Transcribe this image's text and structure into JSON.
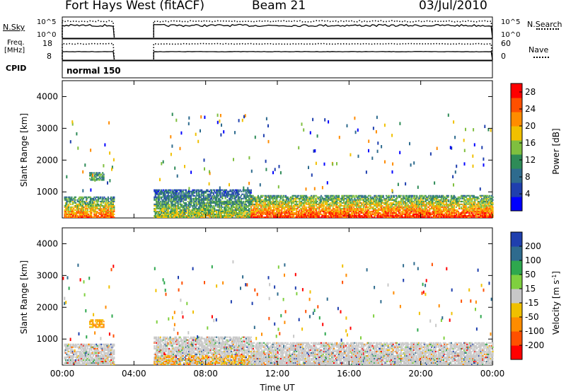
{
  "header": {
    "station": "Fort Hays West (fitACF)",
    "beam": "Beam 21",
    "date": "03/Jul/2010"
  },
  "panels": {
    "nsky_label": "N.Sky",
    "nsearch_label": "N.Search",
    "nsky_ticks": [
      "10^5",
      "10^0"
    ],
    "nsearch_ticks": [
      "10^5",
      "10^0"
    ],
    "freq_label_1": "Freq.",
    "freq_label_2": "[MHz]",
    "freq_ticks": [
      "18",
      "8"
    ],
    "nave_label": "Nave",
    "nave_ticks": [
      "60",
      "0"
    ],
    "cpid_label": "CPID",
    "cpid_value": "normal 150"
  },
  "chart_data": [
    {
      "type": "heatmap",
      "name_key": "power",
      "xlabel": "Time UT",
      "ylabel": "Slant Range [km]",
      "xlim_hours": [
        0,
        24
      ],
      "x_ticks": [
        "00:00",
        "04:00",
        "08:00",
        "12:00",
        "16:00",
        "20:00",
        "00:00"
      ],
      "ylim": [
        180,
        4500
      ],
      "y_ticks": [
        1000,
        2000,
        3000,
        4000
      ],
      "data_gap_hours": [
        2.9,
        5.1
      ],
      "colorbar": {
        "label": "Power [dB]",
        "ticks": [
          4,
          8,
          12,
          16,
          20,
          24,
          28
        ],
        "range": [
          0,
          30
        ],
        "colors": [
          "#0000ff",
          "#1f3fae",
          "#2e6b8e",
          "#2e8b57",
          "#7fbf3f",
          "#f0c000",
          "#ff8c00",
          "#ff5000",
          "#ff0000"
        ]
      },
      "echo_regions": [
        {
          "t0": 0.1,
          "t1": 2.9,
          "r0": 180,
          "r1": 850,
          "dominant": "red-orange"
        },
        {
          "t0": 5.1,
          "t1": 10.5,
          "r0": 180,
          "r1": 1050,
          "dominant": "green-orange"
        },
        {
          "t0": 10.5,
          "t1": 24.0,
          "r0": 180,
          "r1": 900,
          "dominant": "red"
        },
        {
          "t0": 1.5,
          "t1": 2.3,
          "r0": 1350,
          "r1": 1600,
          "dominant": "green"
        }
      ]
    },
    {
      "type": "heatmap",
      "name_key": "velocity",
      "xlabel": "Time UT",
      "ylabel": "Slant Range [km]",
      "xlim_hours": [
        0,
        24
      ],
      "x_ticks": [
        "00:00",
        "04:00",
        "08:00",
        "12:00",
        "16:00",
        "20:00",
        "00:00"
      ],
      "ylim": [
        180,
        4500
      ],
      "y_ticks": [
        1000,
        2000,
        3000,
        4000
      ],
      "data_gap_hours": [
        2.9,
        5.1
      ],
      "colorbar": {
        "label": "Velocity [m s^-1]",
        "ticks": [
          200,
          100,
          50,
          15,
          -15,
          -50,
          -100,
          -200
        ],
        "colors": [
          "#1f3fae",
          "#2e6b8e",
          "#2ea84e",
          "#7fd03f",
          "#c8c8c8",
          "#f0c000",
          "#ff8c00",
          "#ff5000",
          "#ff0000"
        ]
      },
      "echo_regions": [
        {
          "t0": 0.1,
          "t1": 2.9,
          "r0": 180,
          "r1": 850,
          "dominant": "grey"
        },
        {
          "t0": 5.1,
          "t1": 10.5,
          "r0": 180,
          "r1": 1050,
          "dominant": "grey-orange"
        },
        {
          "t0": 10.5,
          "t1": 24.0,
          "r0": 180,
          "r1": 900,
          "dominant": "grey"
        },
        {
          "t0": 1.5,
          "t1": 2.3,
          "r0": 1350,
          "r1": 1600,
          "dominant": "orange"
        }
      ]
    }
  ]
}
